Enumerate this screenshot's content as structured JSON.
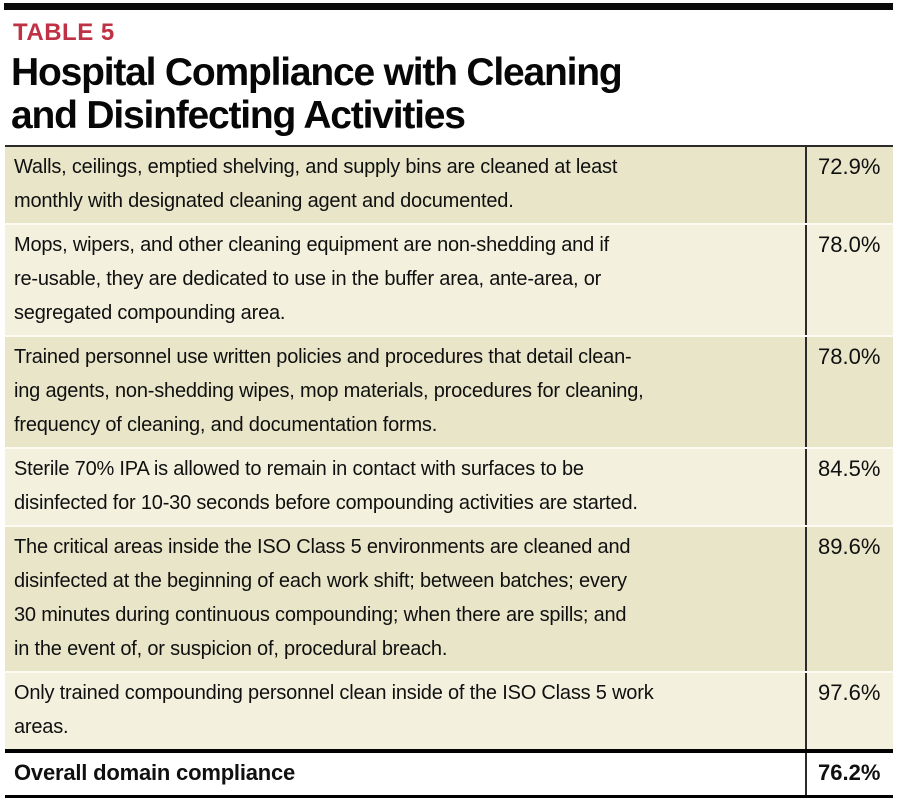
{
  "header": {
    "table_label": "TABLE 5",
    "title": "Hospital Compliance with Cleaning\nand Disinfecting Activities"
  },
  "table": {
    "rows": [
      {
        "text": "Walls, ceilings, emptied shelving, and supply bins are cleaned at least\nmonthly with designated cleaning agent and documented.",
        "value": "72.9%"
      },
      {
        "text": "Mops, wipers, and other cleaning equipment are non-shedding and if\nre-usable, they are dedicated to use in the buffer area, ante-area, or\nsegregated compounding area.",
        "value": "78.0%"
      },
      {
        "text": "Trained personnel use written policies and procedures that detail clean-\ning agents, non-shedding wipes, mop materials, procedures for cleaning,\nfrequency of cleaning, and documentation forms.",
        "value": "78.0%"
      },
      {
        "text": "Sterile 70% IPA is allowed to remain in contact with surfaces to be\ndisinfected for 10-30 seconds before compounding activities are started.",
        "value": "84.5%"
      },
      {
        "text": "The critical areas inside the ISO Class 5 environments are cleaned and\ndisinfected at the beginning of each work shift; between batches; every\n30 minutes during continuous compounding; when there are spills; and\nin the event of, or suspicion of, procedural breach.",
        "value": "89.6%"
      },
      {
        "text": "Only trained compounding personnel clean inside of the ISO Class 5 work\nareas.",
        "value": "97.6%"
      }
    ],
    "footer": {
      "label": "Overall domain compliance",
      "value": "76.2%"
    }
  },
  "colors": {
    "accent_red": "#bf3144",
    "row_dark": "#e8e5c8",
    "row_light": "#f3f1de",
    "rule_black": "#0a0a0a"
  }
}
